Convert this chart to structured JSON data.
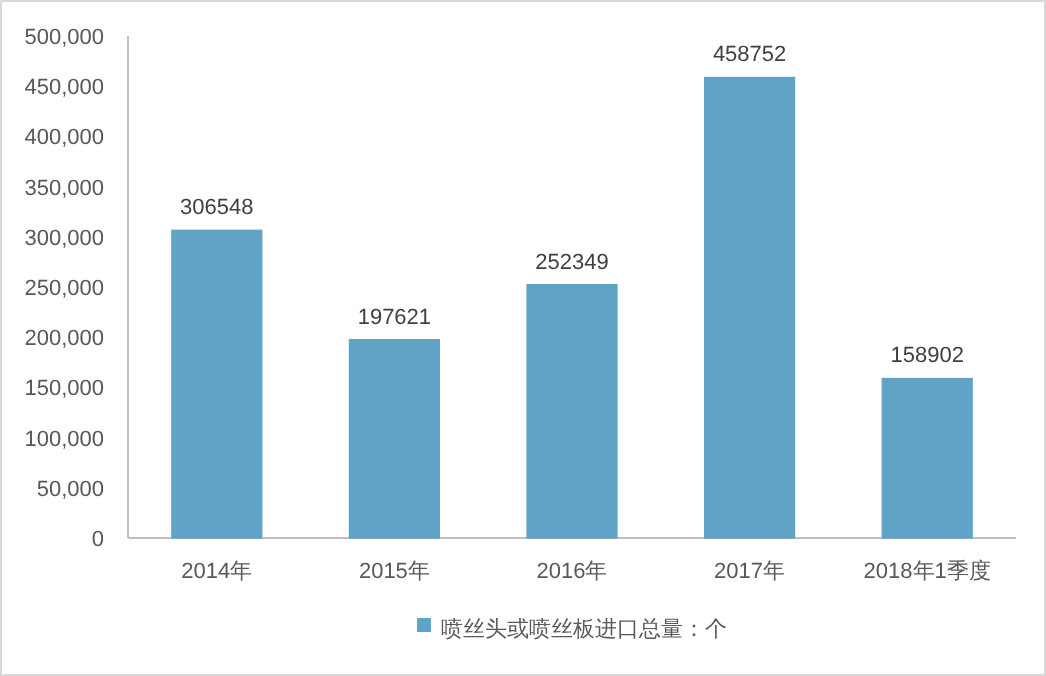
{
  "chart_data": {
    "type": "bar",
    "categories": [
      "2014年",
      "2015年",
      "2016年",
      "2017年",
      "2018年1季度"
    ],
    "series": [
      {
        "name": "喷丝头或喷丝板进口总量：个",
        "color": "#5fa3c6",
        "values": [
          306548,
          197621,
          252349,
          458752,
          158902
        ]
      }
    ],
    "ylim": [
      0,
      500000
    ],
    "yticks": [
      0,
      {
        "value": 50000,
        "label": "50,000"
      },
      {
        "value": 100000,
        "label": "100,000"
      },
      {
        "value": 150000,
        "label": "150,000"
      },
      {
        "value": 200000,
        "label": "200,000"
      },
      {
        "value": 250000,
        "label": "250,000"
      },
      {
        "value": 300000,
        "label": "300,000"
      },
      {
        "value": 350000,
        "label": "350,000"
      },
      {
        "value": 400000,
        "label": "400,000"
      },
      {
        "value": 450000,
        "label": "450,000"
      },
      {
        "value": 500000,
        "label": "500,000"
      }
    ],
    "data_labels": true,
    "legend": "bottom",
    "grid": false
  }
}
